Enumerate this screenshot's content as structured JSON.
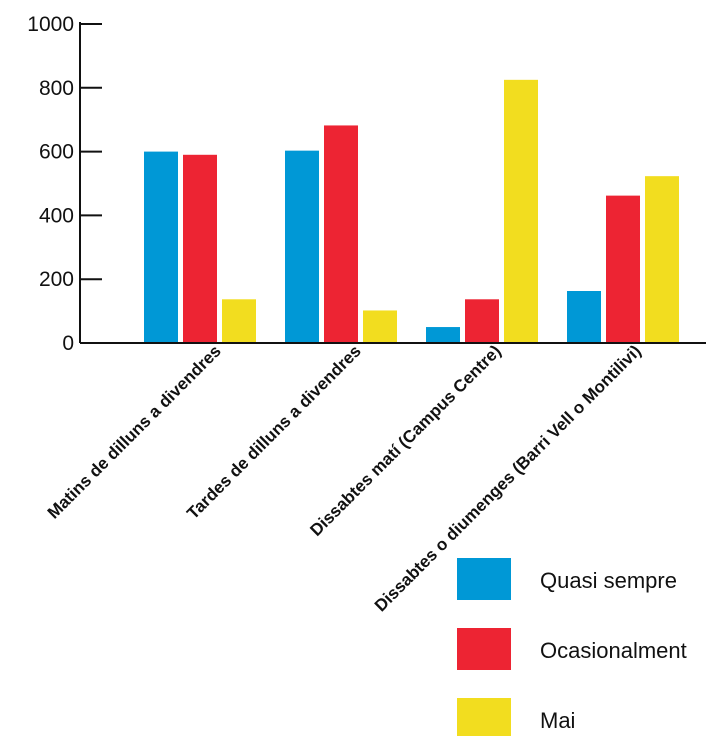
{
  "chart_data": {
    "type": "bar",
    "categories": [
      "Matins de dilluns a divendres",
      "Tardes de dilluns a divendres",
      "Dissabtes matí (Campus Centre)",
      "Dissabtes o diumenges (Barri Vell o Montilivi)"
    ],
    "series": [
      {
        "name": "Quasi sempre",
        "color": "#0098d6",
        "values": [
          600,
          603,
          50,
          163
        ]
      },
      {
        "name": "Ocasionalment",
        "color": "#ed2433",
        "values": [
          590,
          682,
          137,
          462
        ]
      },
      {
        "name": "Mai",
        "color": "#f2dd1f",
        "values": [
          137,
          102,
          825,
          523
        ]
      }
    ],
    "yticks": [
      0,
      200,
      400,
      600,
      800,
      1000
    ],
    "ylim": [
      0,
      1000
    ],
    "title": "",
    "xlabel": "",
    "ylabel": "",
    "grid": false,
    "legend_position": "bottom-right"
  }
}
